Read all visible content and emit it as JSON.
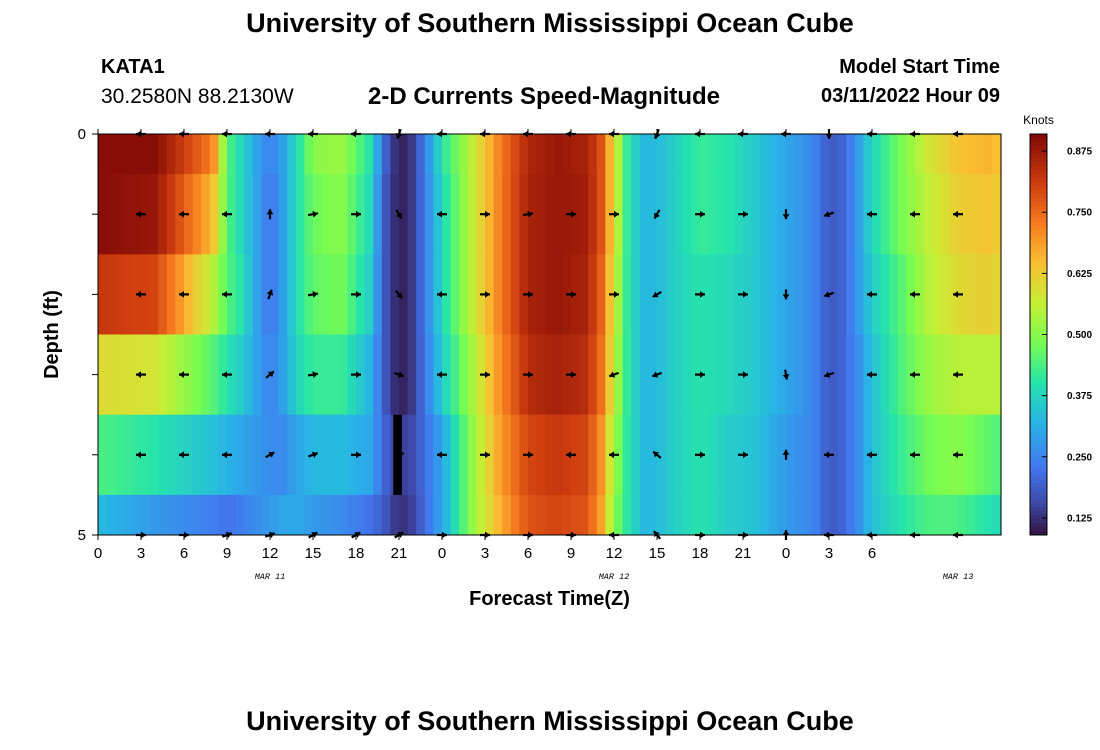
{
  "header": {
    "title": "University of Southern Mississippi Ocean Cube",
    "station_id": "KATA1",
    "station_coords": "30.2580N  88.2130W",
    "subtitle": "2-D Currents Speed-Magnitude",
    "model_start_label": "Model Start Time",
    "model_start_value": "03/11/2022 Hour 09"
  },
  "footer": {
    "title": "University of Southern Mississippi Ocean Cube"
  },
  "chart_data": {
    "type": "heatmap",
    "title": "2-D Currents Speed-Magnitude",
    "xlabel": "Forecast Time(Z)",
    "ylabel": "Depth (ft)",
    "x_ticks": [
      "0",
      "3",
      "6",
      "9",
      "12",
      "15",
      "18",
      "21",
      "0",
      "3",
      "6",
      "9",
      "12",
      "15",
      "18",
      "21",
      "0",
      "3",
      "6"
    ],
    "date_labels": [
      {
        "label": "MAR 11",
        "hour": 12
      },
      {
        "label": "MAR 12",
        "hour": 36
      },
      {
        "label": "MAR 13",
        "hour": 60
      }
    ],
    "xlim": [
      0,
      63
    ],
    "ylim": [
      0,
      5
    ],
    "y_ticks": [
      "0",
      "5"
    ],
    "depth_levels": [
      0,
      1,
      2,
      3,
      4,
      5
    ],
    "colorbar": {
      "label": "Knots",
      "range": [
        0.09,
        0.91
      ],
      "ticks": [
        "0.125",
        "0.250",
        "0.375",
        "0.500",
        "0.625",
        "0.750",
        "0.875"
      ]
    },
    "speed_profile": {
      "hours": [
        0,
        4,
        8,
        9,
        10,
        11,
        12,
        13,
        14,
        15,
        17,
        19,
        20,
        21,
        22,
        24,
        26,
        28,
        30,
        32,
        34,
        35,
        36,
        37,
        38,
        39,
        40,
        42,
        44,
        46,
        48,
        50,
        51,
        52,
        53,
        54,
        56,
        58,
        60,
        62,
        63
      ],
      "speeds_by_depth": [
        [
          0.9,
          0.9,
          0.72,
          0.45,
          0.38,
          0.3,
          0.24,
          0.3,
          0.4,
          0.5,
          0.52,
          0.4,
          0.2,
          0.1,
          0.14,
          0.4,
          0.55,
          0.72,
          0.85,
          0.88,
          0.86,
          0.8,
          0.6,
          0.4,
          0.33,
          0.33,
          0.36,
          0.42,
          0.4,
          0.35,
          0.3,
          0.25,
          0.18,
          0.2,
          0.28,
          0.38,
          0.48,
          0.58,
          0.64,
          0.66,
          0.64
        ],
        [
          0.9,
          0.88,
          0.65,
          0.45,
          0.38,
          0.3,
          0.22,
          0.3,
          0.4,
          0.47,
          0.5,
          0.38,
          0.18,
          0.1,
          0.14,
          0.38,
          0.55,
          0.72,
          0.86,
          0.88,
          0.87,
          0.8,
          0.6,
          0.4,
          0.33,
          0.33,
          0.36,
          0.42,
          0.4,
          0.35,
          0.3,
          0.25,
          0.18,
          0.2,
          0.28,
          0.38,
          0.48,
          0.56,
          0.62,
          0.64,
          0.62
        ],
        [
          0.82,
          0.8,
          0.55,
          0.45,
          0.4,
          0.3,
          0.22,
          0.3,
          0.4,
          0.46,
          0.48,
          0.36,
          0.18,
          0.1,
          0.14,
          0.38,
          0.55,
          0.72,
          0.86,
          0.88,
          0.86,
          0.78,
          0.58,
          0.4,
          0.33,
          0.33,
          0.36,
          0.4,
          0.38,
          0.35,
          0.3,
          0.25,
          0.18,
          0.2,
          0.28,
          0.36,
          0.45,
          0.55,
          0.6,
          0.62,
          0.6
        ],
        [
          0.6,
          0.58,
          0.45,
          0.4,
          0.36,
          0.3,
          0.24,
          0.3,
          0.38,
          0.42,
          0.42,
          0.32,
          0.18,
          0.1,
          0.14,
          0.36,
          0.52,
          0.7,
          0.84,
          0.86,
          0.84,
          0.76,
          0.56,
          0.4,
          0.33,
          0.33,
          0.36,
          0.4,
          0.38,
          0.35,
          0.3,
          0.25,
          0.18,
          0.2,
          0.26,
          0.34,
          0.44,
          0.52,
          0.55,
          0.55,
          0.55
        ],
        [
          0.44,
          0.4,
          0.34,
          0.32,
          0.3,
          0.28,
          0.26,
          0.26,
          0.3,
          0.33,
          0.33,
          0.3,
          0.2,
          0.14,
          0.16,
          0.3,
          0.5,
          0.68,
          0.8,
          0.82,
          0.8,
          0.72,
          0.52,
          0.4,
          0.33,
          0.33,
          0.36,
          0.4,
          0.36,
          0.34,
          0.28,
          0.25,
          0.18,
          0.2,
          0.26,
          0.34,
          0.42,
          0.48,
          0.5,
          0.46,
          0.44
        ],
        [
          0.33,
          0.28,
          0.24,
          0.22,
          0.24,
          0.26,
          0.28,
          0.3,
          0.3,
          0.28,
          0.26,
          0.22,
          0.18,
          0.12,
          0.15,
          0.3,
          0.5,
          0.66,
          0.78,
          0.8,
          0.78,
          0.7,
          0.5,
          0.4,
          0.33,
          0.33,
          0.36,
          0.4,
          0.36,
          0.34,
          0.28,
          0.25,
          0.18,
          0.2,
          0.26,
          0.34,
          0.4,
          0.44,
          0.44,
          0.4,
          0.38
        ]
      ]
    },
    "missing_data": {
      "hour_start": 20.6,
      "hour_end": 21.2,
      "depth_start": 3.5,
      "depth_end": 4.5
    },
    "vector_hours": [
      3,
      6,
      9,
      12,
      15,
      18,
      21,
      24,
      27,
      30,
      33,
      36,
      39,
      42,
      45,
      48,
      51,
      54,
      57,
      60
    ],
    "vector_directions_deg": [
      [
        180,
        180,
        180,
        180,
        180,
        180,
        250,
        180,
        180,
        180,
        180,
        180,
        250,
        180,
        180,
        180,
        270,
        180,
        180,
        180
      ],
      [
        180,
        180,
        180,
        90,
        10,
        0,
        300,
        180,
        0,
        10,
        0,
        0,
        240,
        0,
        0,
        270,
        200,
        180,
        180,
        180
      ],
      [
        180,
        180,
        180,
        70,
        10,
        0,
        310,
        180,
        0,
        0,
        0,
        0,
        210,
        0,
        0,
        270,
        200,
        180,
        180,
        180
      ],
      [
        180,
        180,
        180,
        40,
        10,
        0,
        340,
        180,
        0,
        0,
        0,
        200,
        200,
        0,
        0,
        280,
        200,
        180,
        180,
        180
      ],
      [
        180,
        180,
        180,
        30,
        20,
        0,
        20,
        180,
        0,
        0,
        180,
        180,
        140,
        0,
        0,
        90,
        180,
        180,
        180,
        180
      ],
      [
        0,
        0,
        20,
        20,
        30,
        30,
        30,
        0,
        0,
        0,
        0,
        180,
        130,
        0,
        0,
        90,
        180,
        180,
        180,
        180
      ]
    ]
  }
}
